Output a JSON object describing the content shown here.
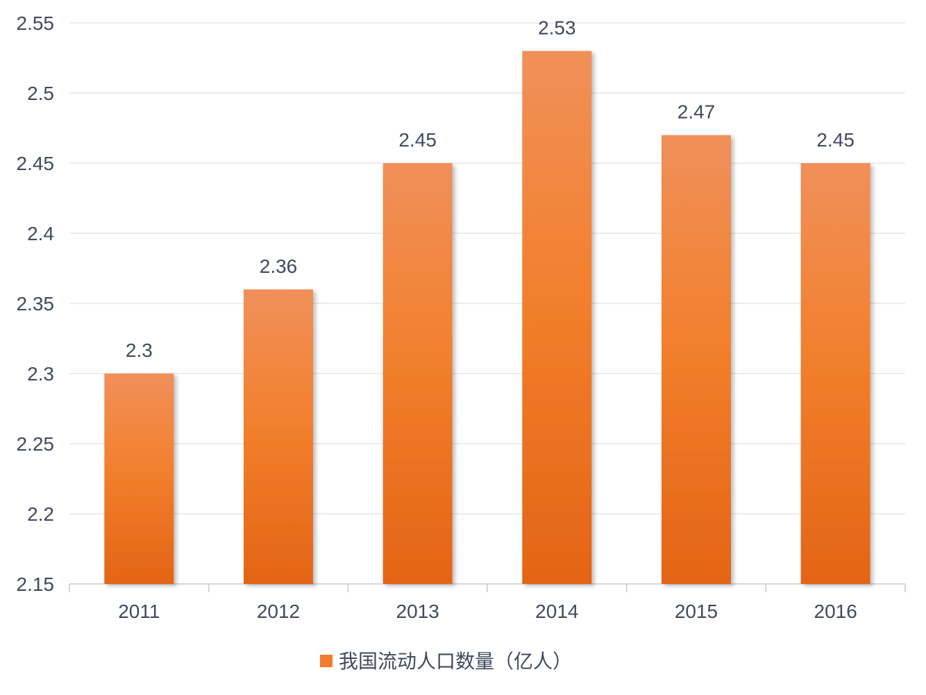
{
  "chart_data": {
    "type": "bar",
    "categories": [
      "2011",
      "2012",
      "2013",
      "2014",
      "2015",
      "2016"
    ],
    "series": [
      {
        "name": "我国流动人口数量（亿人）",
        "values": [
          2.3,
          2.36,
          2.45,
          2.53,
          2.47,
          2.45
        ],
        "color": "#f07e2e"
      }
    ],
    "data_labels": [
      "2.3",
      "2.36",
      "2.45",
      "2.53",
      "2.47",
      "2.45"
    ],
    "ylim": [
      2.15,
      2.55
    ],
    "y_ticks": [
      2.15,
      2.2,
      2.25,
      2.3,
      2.35,
      2.4,
      2.45,
      2.5,
      2.55
    ],
    "y_tick_labels": [
      "2.15",
      "2.2",
      "2.25",
      "2.3",
      "2.35",
      "2.4",
      "2.45",
      "2.5",
      "2.55"
    ],
    "grid": true,
    "legend": {
      "position": "bottom",
      "label": "我国流动人口数量（亿人）"
    },
    "colors": {
      "bar_top": "#f0905a",
      "bar_bottom": "#e46416",
      "grid": "#d9d9d9",
      "text": "#404a5e"
    }
  }
}
